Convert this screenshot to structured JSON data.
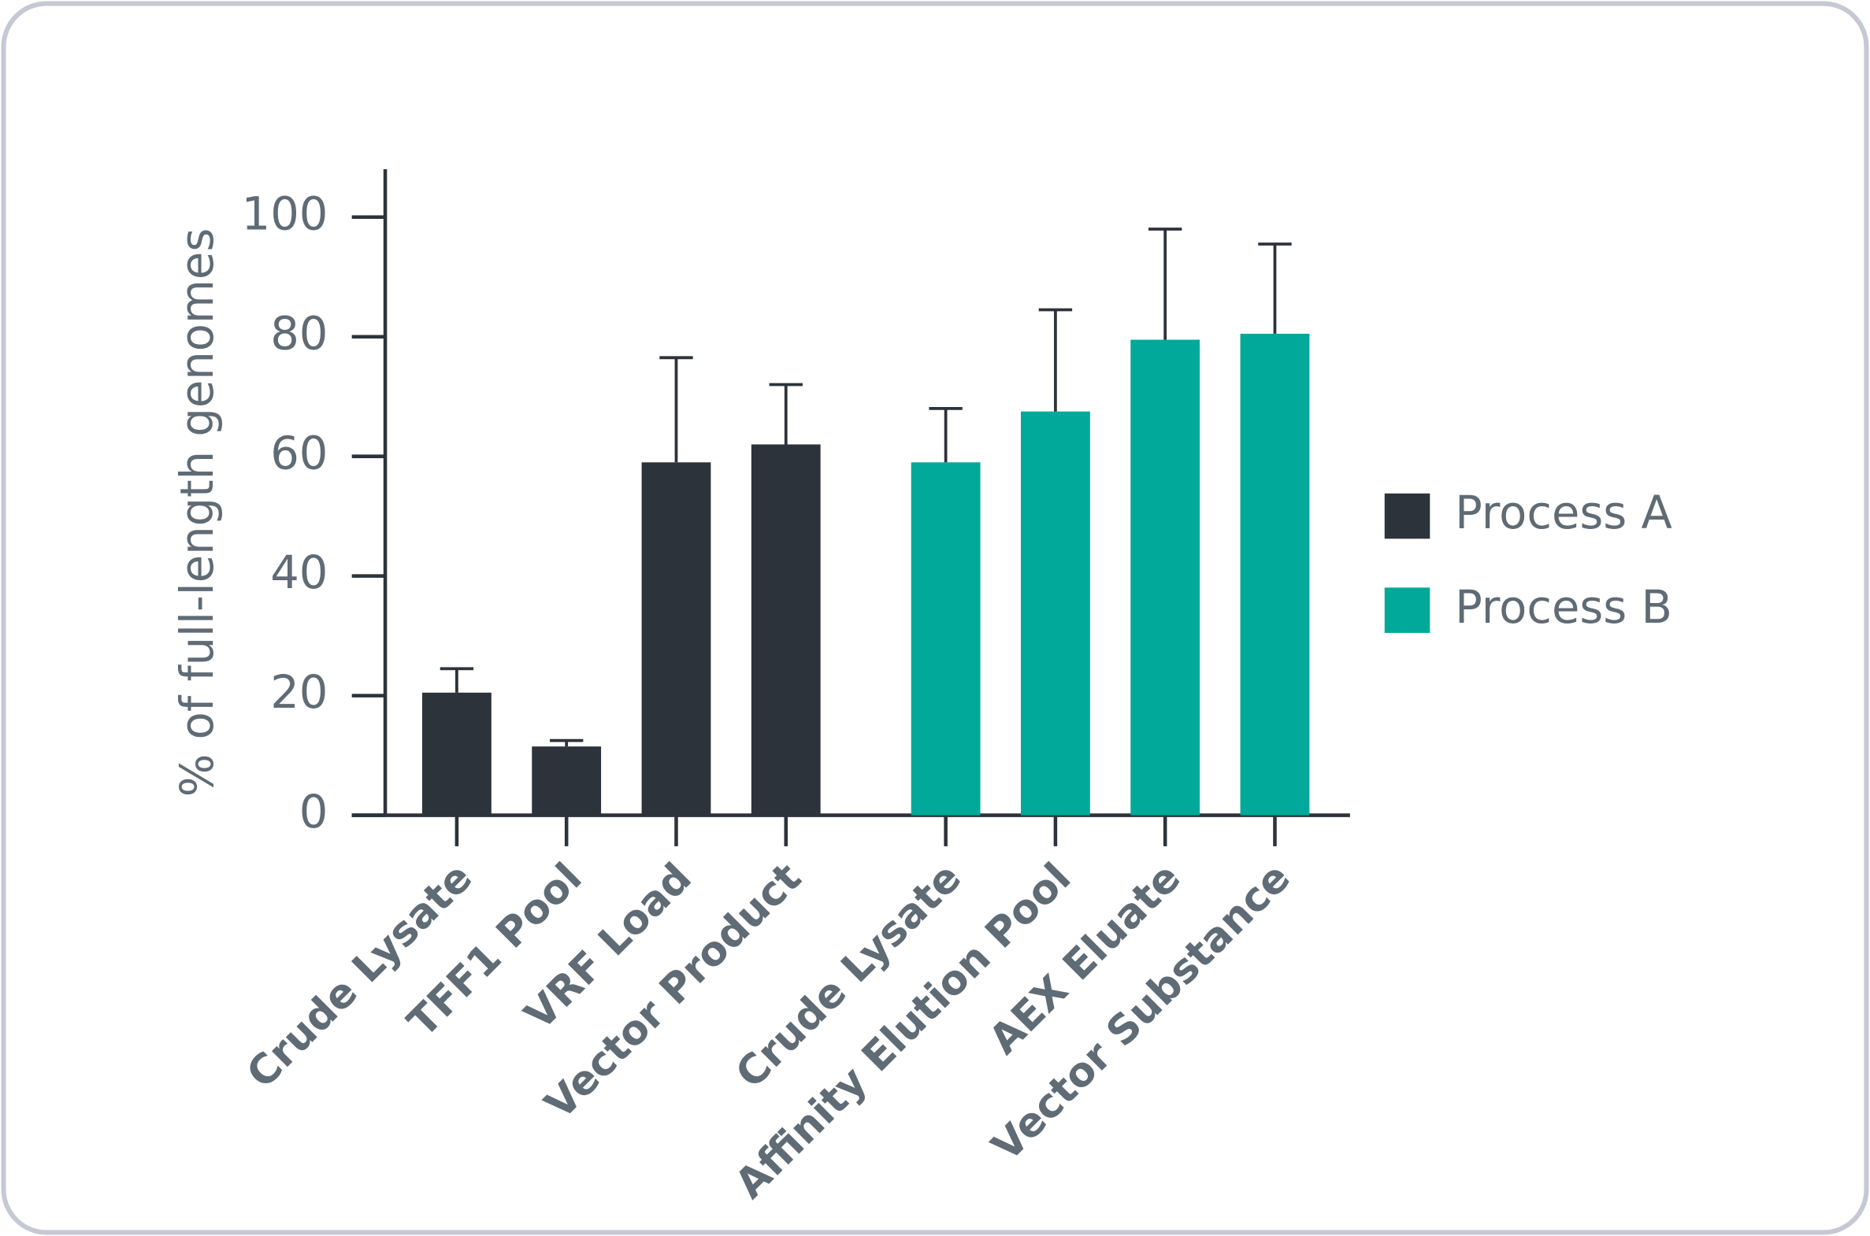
{
  "chart_data": {
    "type": "bar",
    "y_label": "% of full-length genomes",
    "categories": [
      "Crude Lysate",
      "TFF1 Pool",
      "VRF Load",
      "Vector Product",
      "Crude Lysate",
      "Affinity Elution Pool",
      "AEX Eluate",
      "Vector Substance"
    ],
    "series": [
      {
        "name": "Process A",
        "color": "#2d333b",
        "values": [
          20.5,
          11.5,
          59,
          62,
          null,
          null,
          null,
          null
        ],
        "errors": [
          4,
          1,
          17.5,
          10,
          null,
          null,
          null,
          null
        ]
      },
      {
        "name": "Process B",
        "color": "#00a99a",
        "values": [
          null,
          null,
          null,
          null,
          59,
          67.5,
          79.5,
          80.5
        ],
        "errors": [
          null,
          null,
          null,
          null,
          9,
          17,
          18.5,
          15
        ]
      }
    ],
    "ylim": [
      0,
      108
    ],
    "yticks": [
      0,
      20,
      40,
      60,
      80,
      100
    ],
    "grid": false,
    "legend": "right"
  }
}
